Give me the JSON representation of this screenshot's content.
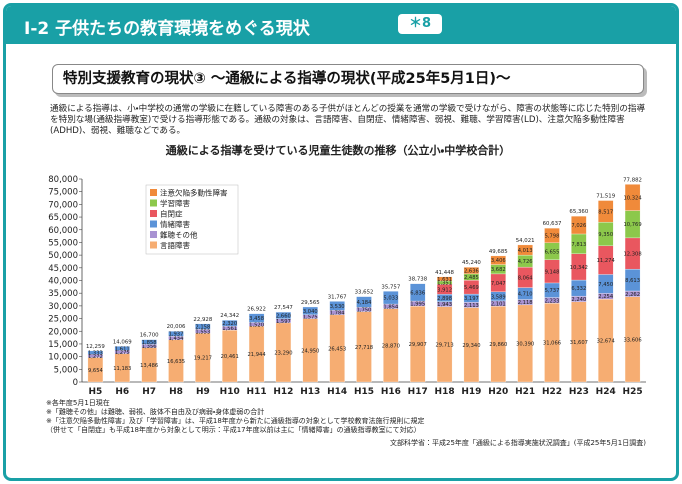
{
  "header": {
    "title": "Ⅰ-2 子供たちの教育環境をめぐる現状",
    "badge": "＊8"
  },
  "subheading": "特別支援教育の現状③ 〜通級による指導の現状(平成25年5月1日)〜",
  "description": "通級による指導は、小・中学校の通常の学級に在籍している障害のある子供がほとんどの授業を通常の学級で受けながら、障害の状態等に応じた特別の指導を特別な場(通級指導教室)で受ける指導形態である。通級の対象は、言語障害、自閉症、情緒障害、弱視、難聴、学習障害(LD)、注意欠陥多動性障害(ADHD)、弱視、難聴などである。",
  "chart_data": {
    "type": "stacked_bar",
    "title": "通級による指導を受けている児童生徒数の推移（公立小・中学校合計）",
    "categories": [
      "H5",
      "H6",
      "H7",
      "H8",
      "H9",
      "H10",
      "H11",
      "H12",
      "H13",
      "H14",
      "H15",
      "H16",
      "H17",
      "H18",
      "H19",
      "H20",
      "H21",
      "H22",
      "H23",
      "H24",
      "H25"
    ],
    "series": [
      {
        "name": "言語障害",
        "color": "#f6ad72",
        "values": [
          9654,
          11183,
          13486,
          16635,
          19217,
          20461,
          21944,
          23290,
          24950,
          26453,
          27718,
          28870,
          29907,
          29713,
          29340,
          29860,
          30390,
          31066,
          31607,
          32674,
          33606
        ],
        "value_labels": [
          "9,654",
          "11,183",
          "13,486",
          "16,635",
          "19,217",
          "20,461",
          "21,944",
          "23,290",
          "24,950",
          "26,453",
          "27,718",
          "28,870",
          "29,907",
          "29,713",
          "29,340",
          "29,860",
          "30,390",
          "31,066",
          "31,607",
          "32,674",
          "33,606"
        ]
      },
      {
        "name": "難聴その他",
        "color": "#a892d2",
        "values": [
          1272,
          1275,
          1356,
          1434,
          1553,
          1561,
          1520,
          1597,
          1575,
          1784,
          1750,
          1854,
          1995,
          1943,
          2113,
          2101,
          2118,
          2233,
          2240,
          2254,
          2262
        ],
        "value_labels": [
          "1,272",
          "1,275",
          "1,356",
          "1,434",
          "1,553",
          "1,561",
          "1,520",
          "1,597",
          "1,575",
          "1,784",
          "1,750",
          "1,854",
          "1,995",
          "1,943",
          "2,113",
          "2,101",
          "2,118",
          "2,233",
          "2,240",
          "2,254",
          "2,262"
        ]
      },
      {
        "name": "情緒障害",
        "color": "#5b93d8",
        "values": [
          1333,
          1611,
          1858,
          1937,
          2158,
          2320,
          3458,
          2660,
          3040,
          3530,
          4184,
          5033,
          6836,
          2898,
          3197,
          3589,
          4710,
          5737,
          6332,
          7450,
          8613
        ],
        "value_labels": [
          "1,333",
          "1,611",
          "1,858",
          "1,937",
          "2,158",
          "2,320",
          "3,458",
          "2,660",
          "3,040",
          "3,530",
          "4,184",
          "5,033",
          "6,836",
          "2,898",
          "3,197",
          "3,589",
          "4,710",
          "5,737",
          "6,332",
          "7,450",
          "8,613"
        ]
      },
      {
        "name": "自閉症",
        "color": "#e9575f",
        "values": [
          null,
          null,
          null,
          null,
          null,
          null,
          null,
          null,
          null,
          null,
          null,
          null,
          null,
          3912,
          5469,
          7047,
          8064,
          9148,
          10342,
          11274,
          12308
        ],
        "value_labels": [
          null,
          null,
          null,
          null,
          null,
          null,
          null,
          null,
          null,
          null,
          null,
          null,
          null,
          "3,912",
          "5,469",
          "7,047",
          "8,064",
          "9,148",
          "10,342",
          "11,274",
          "12,308"
        ]
      },
      {
        "name": "学習障害",
        "color": "#8cc84b",
        "values": [
          null,
          null,
          null,
          null,
          null,
          null,
          null,
          null,
          null,
          null,
          null,
          null,
          null,
          1351,
          2485,
          3682,
          4726,
          6655,
          7813,
          9350,
          10769
        ],
        "value_labels": [
          null,
          null,
          null,
          null,
          null,
          null,
          null,
          null,
          null,
          null,
          null,
          null,
          null,
          "1,351",
          "2,485",
          "3,682",
          "4,726",
          "6,655",
          "7,813",
          "9,350",
          "10,769"
        ]
      },
      {
        "name": "注意欠陥多動性障害",
        "color": "#f08a3a",
        "values": [
          null,
          null,
          null,
          null,
          null,
          null,
          null,
          null,
          null,
          null,
          null,
          null,
          null,
          1631,
          2636,
          3406,
          4013,
          5798,
          7026,
          8517,
          10324
        ],
        "value_labels": [
          null,
          null,
          null,
          null,
          null,
          null,
          null,
          null,
          null,
          null,
          null,
          null,
          null,
          "1,631",
          "2,636",
          "3,406",
          "4,013",
          "5,798",
          "7,026",
          "8,517",
          "10,324"
        ]
      }
    ],
    "totals": {
      "values": [
        12259,
        14069,
        16700,
        20006,
        22928,
        24342,
        26922,
        27547,
        29565,
        31767,
        33652,
        35757,
        38738,
        41448,
        45240,
        49685,
        54021,
        60637,
        65360,
        71519,
        77882
      ],
      "value_labels": [
        "12,259",
        "14,069",
        "16,700",
        "20,006",
        "22,928",
        "24,342",
        "26,922",
        "27,547",
        "29,565",
        "31,767",
        "33,652",
        "35,757",
        "38,738",
        "41,448",
        "45,240",
        "49,685",
        "54,021",
        "60,637",
        "65,360",
        "71,519",
        "77,882"
      ]
    },
    "ylim": [
      0,
      80000
    ],
    "yticks": [
      0,
      {
        "value": 5000,
        "label": "5,000"
      },
      {
        "value": 10000,
        "label": "10,000"
      },
      {
        "value": 15000,
        "label": "15,000"
      },
      {
        "value": 20000,
        "label": "20,000"
      },
      {
        "value": 25000,
        "label": "25,000"
      },
      {
        "value": 30000,
        "label": "30,000"
      },
      {
        "value": 35000,
        "label": "35,000"
      },
      {
        "value": 40000,
        "label": "40,000"
      },
      {
        "value": 45000,
        "label": "45,000"
      },
      {
        "value": 50000,
        "label": "50,000"
      },
      {
        "value": 55000,
        "label": "55,000"
      },
      {
        "value": 60000,
        "label": "60,000"
      },
      {
        "value": 65000,
        "label": "65,000"
      },
      {
        "value": 70000,
        "label": "70,000"
      },
      {
        "value": 75000,
        "label": "75,000"
      },
      {
        "value": 80000,
        "label": "80,000"
      }
    ],
    "grid": false,
    "legend": "upper left"
  },
  "notes": [
    "※各年度5月1日現在",
    "※「難聴その他」は難聴、弱視、肢体不自由及び病弱・身体虚弱の合計",
    "※「注意欠陥多動性障害」及び「学習障害」は、平成18年度から新たに通級指導の対象として学校教育法施行規則に規定",
    "（併せて「自閉症」も平成18年度から対象として明示：平成17年度以前は主に「情緒障害」の通級指導教室にて対応）"
  ],
  "source": "文部科学省：平成25年度「通級による指導実施状況調査」(平成25年5月1日調査)"
}
